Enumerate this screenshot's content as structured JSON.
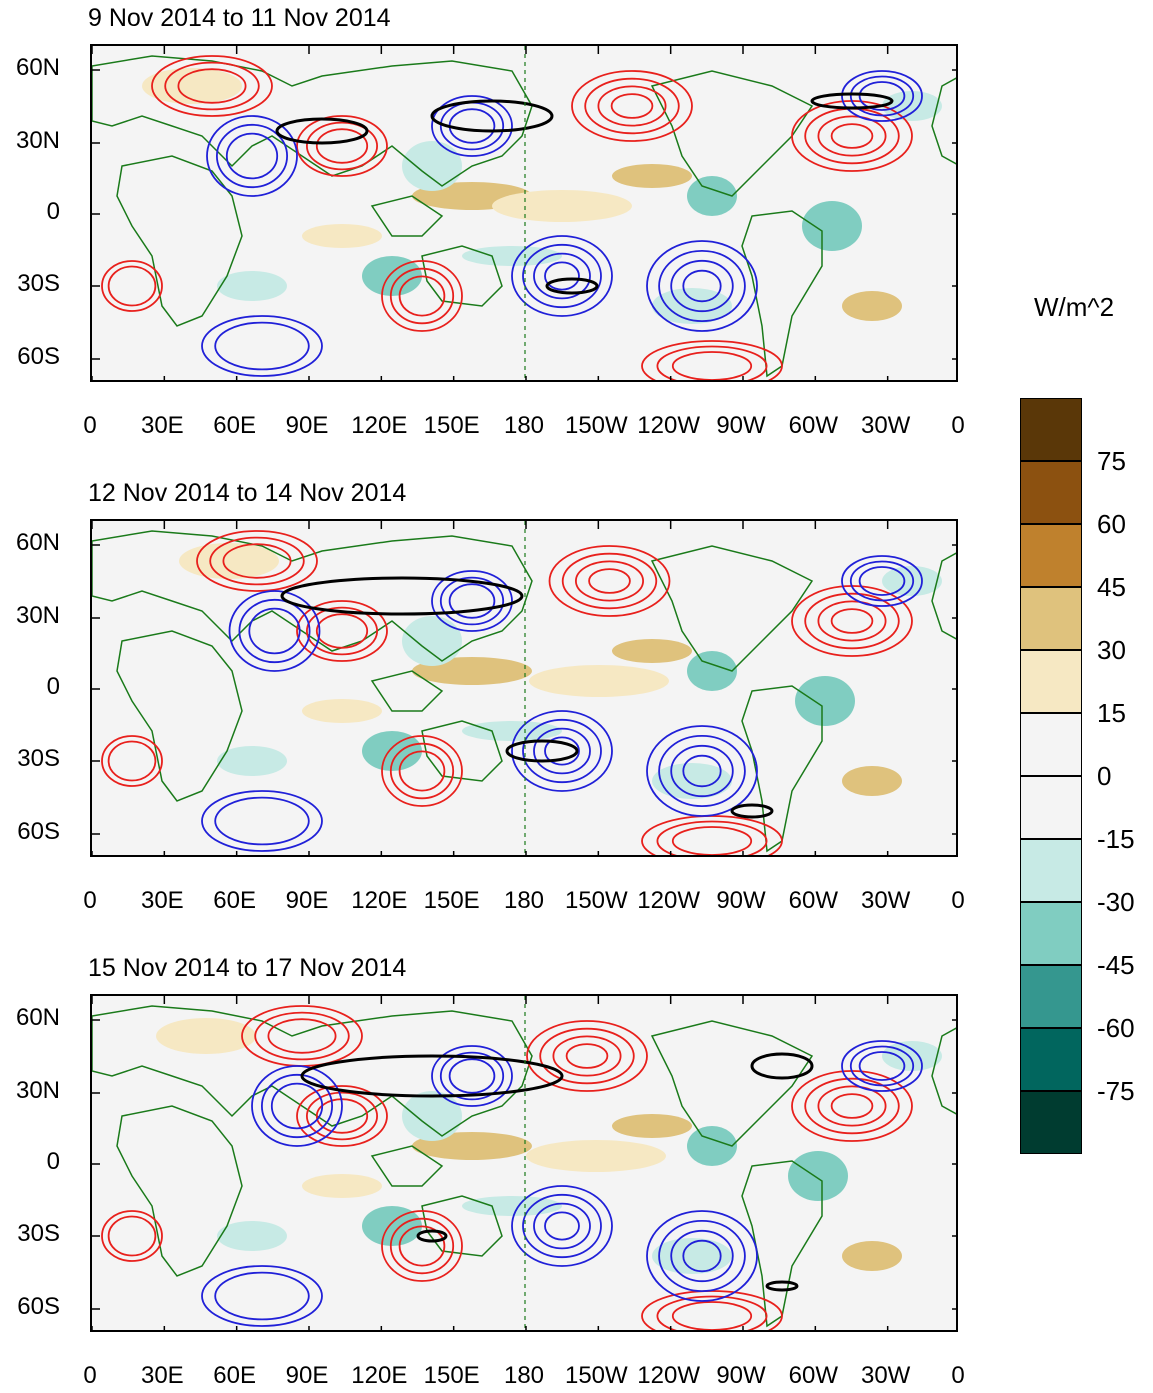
{
  "panels": [
    {
      "title": "9 Nov 2014 to 11 Nov 2014"
    },
    {
      "title": "12 Nov 2014 to 14 Nov 2014"
    },
    {
      "title": "15 Nov 2014 to 17 Nov 2014"
    }
  ],
  "axes": {
    "y_labels": [
      "60N",
      "30N",
      "0",
      "30S",
      "60S"
    ],
    "x_labels": [
      "0",
      "30E",
      "60E",
      "90E",
      "120E",
      "150E",
      "180",
      "150W",
      "120W",
      "90W",
      "60W",
      "30W",
      "0"
    ]
  },
  "colorbar": {
    "title": "W/m^2",
    "labels": [
      "75",
      "60",
      "45",
      "30",
      "15",
      "0",
      "-15",
      "-30",
      "-45",
      "-60",
      "-75"
    ],
    "colors": [
      "#5a3708",
      "#8c5110",
      "#bf812d",
      "#dfc27d",
      "#f6e8c3",
      "#f4f4f4",
      "#f4f4f4",
      "#c7eae5",
      "#80cdc1",
      "#35978f",
      "#01665e",
      "#003c30"
    ]
  },
  "palette": {
    "land_outline": "#1a7a1a",
    "positive_contour": "#e8201c",
    "negative_contour": "#2020d8",
    "significance_contour": "#000000"
  }
}
